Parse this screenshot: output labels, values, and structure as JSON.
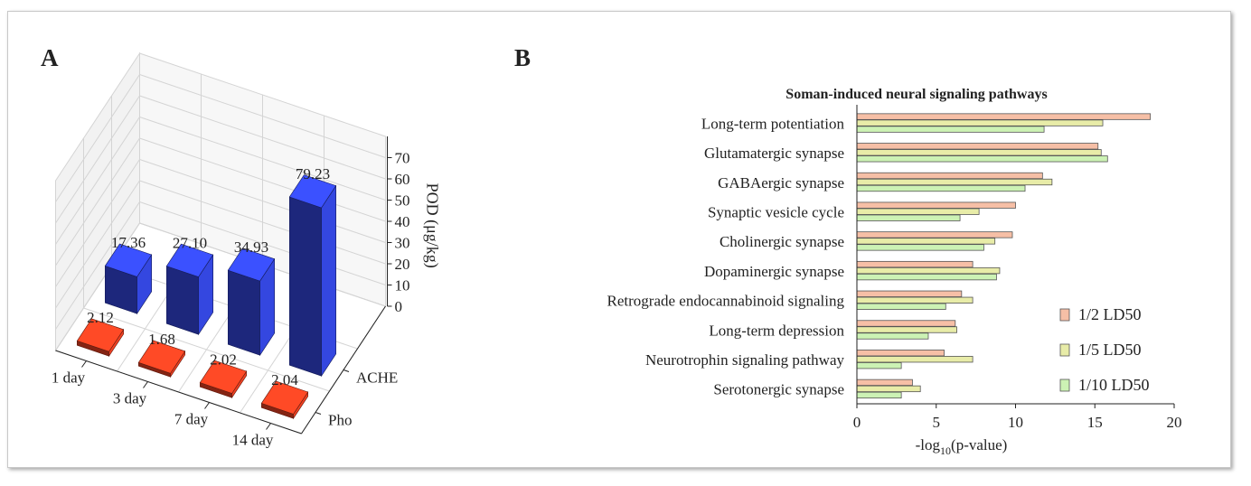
{
  "panel_a_label": "A",
  "panel_b_label": "B",
  "chart_data": [
    {
      "type": "bar",
      "subtype": "3d-bar",
      "title": "",
      "zlabel": "POD (μg/kg)",
      "zlim": [
        0,
        79.23
      ],
      "z_ticks": [
        0,
        10,
        20,
        30,
        40,
        50,
        60,
        70
      ],
      "categories": [
        "1 day",
        "3 day",
        "7 day",
        "14 day"
      ],
      "series": [
        {
          "name": "ACHE",
          "values": [
            17.36,
            27.1,
            34.93,
            79.23
          ],
          "labels": [
            "17.36",
            "27.10",
            "34.93",
            "79.23"
          ],
          "color": "#2e3fc8"
        },
        {
          "name": "Pho",
          "values": [
            2.12,
            1.68,
            2.02,
            2.04
          ],
          "labels": [
            "2.12",
            "1.68",
            "2.02",
            "2.04"
          ],
          "color": "#d63a1e"
        }
      ],
      "grid": true
    },
    {
      "type": "bar",
      "orientation": "horizontal",
      "title": "Soman-induced neural signaling pathways",
      "xlabel_main": "-log",
      "xlabel_sub": "10",
      "xlabel_tail": "(p-value)",
      "xlim": [
        0,
        20
      ],
      "x_ticks": [
        0,
        5,
        10,
        15,
        20
      ],
      "categories": [
        "Long-term potentiation",
        "Glutamatergic synapse",
        "GABAergic synapse",
        "Synaptic vesicle cycle",
        "Cholinergic synapse",
        "Dopaminergic synapse",
        "Retrograde endocannabinoid signaling",
        "Long-term depression",
        "Neurotrophin signaling pathway",
        "Serotonergic synapse"
      ],
      "series": [
        {
          "name": "1/2 LD50",
          "color": "#f6bfa6",
          "values": [
            18.5,
            15.2,
            11.7,
            10.0,
            9.8,
            7.3,
            6.6,
            6.2,
            5.5,
            3.5
          ]
        },
        {
          "name": "1/5 LD50",
          "color": "#e8eca8",
          "values": [
            15.5,
            15.4,
            12.3,
            7.7,
            8.7,
            9.0,
            7.3,
            6.3,
            7.3,
            4.0
          ]
        },
        {
          "name": "1/10 LD50",
          "color": "#ccf2b4",
          "values": [
            11.8,
            15.8,
            10.6,
            6.5,
            8.0,
            8.8,
            5.6,
            4.5,
            2.8,
            2.8
          ]
        }
      ],
      "legend": "bottom-right"
    }
  ]
}
